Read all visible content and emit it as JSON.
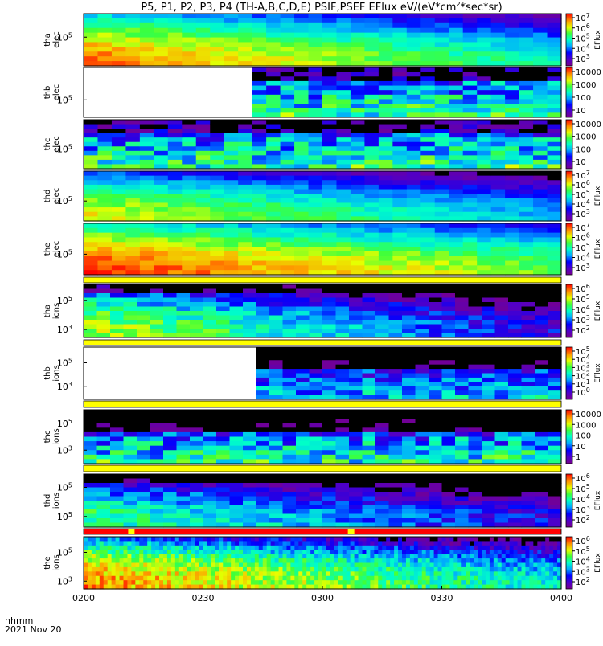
{
  "title": "P5, P1, P2, P3, P4 (TH-A,B,C,D,E) PSIF,PSEF EFlux eV/(eV*cm^2*sec*sr)",
  "time_axis": {
    "ticks": [
      "0200",
      "0230",
      "0300",
      "0330",
      "0400"
    ],
    "range_hours": [
      2.0,
      4.0
    ],
    "label_line1": "hhmm",
    "label_line2": "2021 Nov 20"
  },
  "colorscale": "rainbow",
  "chart_data": [
    {
      "type": "heatmap",
      "probe": "tha",
      "species": "elec",
      "ylabel": [
        "tha",
        "elec"
      ],
      "y_ticks": [
        {
          "base": "10",
          "exp": "5",
          "pos": 0.45
        }
      ],
      "colorbar": {
        "label": "EFlux",
        "log": true,
        "range": [
          100.0,
          10000000.0
        ],
        "ticks": [
          {
            "base": "10",
            "exp": "7"
          },
          {
            "base": "10",
            "exp": "6"
          },
          {
            "base": "10",
            "exp": "5"
          },
          {
            "base": "10",
            "exp": "4"
          },
          {
            "base": "10",
            "exp": "3"
          }
        ]
      },
      "data_start_hours": 2.0,
      "mean_log_flux": [
        6.5,
        4.5
      ]
    },
    {
      "type": "heatmap",
      "probe": "thb",
      "species": "elec",
      "ylabel": [
        "thb",
        "elec"
      ],
      "y_ticks": [
        {
          "base": "10",
          "exp": "5",
          "pos": 0.65
        }
      ],
      "colorbar": {
        "label": "",
        "log": true,
        "range": [
          1,
          10000.0
        ],
        "ticks": [
          {
            "text": "10000"
          },
          {
            "text": "1000"
          },
          {
            "text": "100"
          },
          {
            "text": "10"
          }
        ]
      },
      "data_start_hours": 2.75,
      "mean_log_flux": [
        1.0,
        1.0
      ]
    },
    {
      "type": "heatmap",
      "probe": "thc",
      "species": "elec",
      "ylabel": [
        "thc",
        "elec"
      ],
      "y_ticks": [
        {
          "base": "10",
          "exp": "5",
          "pos": 0.6
        }
      ],
      "colorbar": {
        "label": "",
        "log": true,
        "range": [
          1,
          10000.0
        ],
        "ticks": [
          {
            "text": "10000"
          },
          {
            "text": "1000"
          },
          {
            "text": "100"
          },
          {
            "text": "10"
          }
        ]
      },
      "data_start_hours": 2.0,
      "mean_log_flux": [
        1.5,
        1.0
      ]
    },
    {
      "type": "heatmap",
      "probe": "thd",
      "species": "elec",
      "ylabel": [
        "thd",
        "elec"
      ],
      "y_ticks": [
        {
          "base": "10",
          "exp": "5",
          "pos": 0.6
        }
      ],
      "colorbar": {
        "label": "EFlux",
        "log": true,
        "range": [
          100.0,
          10000000.0
        ],
        "ticks": [
          {
            "base": "10",
            "exp": "7"
          },
          {
            "base": "10",
            "exp": "6"
          },
          {
            "base": "10",
            "exp": "5"
          },
          {
            "base": "10",
            "exp": "4"
          },
          {
            "base": "10",
            "exp": "3"
          }
        ]
      },
      "data_start_hours": 2.0,
      "mean_log_flux": [
        5.8,
        4.0
      ]
    },
    {
      "type": "heatmap",
      "probe": "the",
      "species": "elec",
      "ylabel": [
        "the",
        "elec"
      ],
      "y_ticks": [
        {
          "base": "10",
          "exp": "5",
          "pos": 0.6
        }
      ],
      "colorbar": {
        "label": "EFlux",
        "log": true,
        "range": [
          100.0,
          10000000.0
        ],
        "ticks": [
          {
            "base": "10",
            "exp": "7"
          },
          {
            "base": "10",
            "exp": "6"
          },
          {
            "base": "10",
            "exp": "5"
          },
          {
            "base": "10",
            "exp": "4"
          },
          {
            "base": "10",
            "exp": "3"
          }
        ]
      },
      "data_start_hours": 2.0,
      "mean_log_flux": [
        6.8,
        5.2
      ]
    },
    {
      "type": "heatmap",
      "probe": "tha",
      "species": "ions",
      "ylabel": [
        "tha",
        "ions"
      ],
      "y_ticks": [
        {
          "base": "10",
          "exp": "5",
          "pos": 0.3
        },
        {
          "base": "10",
          "exp": "3",
          "pos": 0.85
        }
      ],
      "colorbar": {
        "label": "EFlux",
        "log": true,
        "range": [
          100.0,
          1000000.0
        ],
        "ticks": [
          {
            "base": "10",
            "exp": "6"
          },
          {
            "base": "10",
            "exp": "5"
          },
          {
            "base": "10",
            "exp": "4"
          },
          {
            "base": "10",
            "exp": "3"
          },
          {
            "base": "10",
            "exp": "2"
          }
        ]
      },
      "data_start_hours": 2.0,
      "mean_log_flux": [
        4.8,
        2.8
      ]
    },
    {
      "type": "heatmap",
      "probe": "thb",
      "species": "ions",
      "ylabel": [
        "thb",
        "ions"
      ],
      "y_ticks": [
        {
          "base": "10",
          "exp": "5",
          "pos": 0.3
        },
        {
          "base": "10",
          "exp": "3",
          "pos": 0.75
        }
      ],
      "colorbar": {
        "label": "EFlux",
        "log": true,
        "range": [
          1,
          100000.0
        ],
        "ticks": [
          {
            "base": "10",
            "exp": "5"
          },
          {
            "base": "10",
            "exp": "4"
          },
          {
            "base": "10",
            "exp": "3"
          },
          {
            "base": "10",
            "exp": "2"
          },
          {
            "base": "10",
            "exp": "1"
          },
          {
            "base": "10",
            "exp": "0"
          }
        ]
      },
      "data_start_hours": 2.75,
      "mean_log_flux": [
        1.5,
        1.5
      ]
    },
    {
      "type": "heatmap",
      "probe": "thc",
      "species": "ions",
      "ylabel": [
        "thc",
        "ions"
      ],
      "y_ticks": [
        {
          "base": "10",
          "exp": "5",
          "pos": 0.25
        },
        {
          "base": "10",
          "exp": "3",
          "pos": 0.75
        }
      ],
      "colorbar": {
        "label": "",
        "log": true,
        "range": [
          1,
          10000.0
        ],
        "ticks": [
          {
            "text": "10000"
          },
          {
            "text": "1000"
          },
          {
            "text": "100"
          },
          {
            "text": "10"
          },
          {
            "text": "1"
          }
        ]
      },
      "data_start_hours": 2.0,
      "mean_log_flux": [
        1.5,
        1.0
      ]
    },
    {
      "type": "heatmap",
      "probe": "thd",
      "species": "ions",
      "ylabel": [
        "thd",
        "ions"
      ],
      "y_ticks": [
        {
          "base": "10",
          "exp": "5",
          "pos": 0.25
        },
        {
          "base": "10",
          "exp": "5",
          "pos": 0.8
        }
      ],
      "colorbar": {
        "label": "EFlux",
        "log": true,
        "range": [
          100.0,
          1000000.0
        ],
        "ticks": [
          {
            "base": "10",
            "exp": "6"
          },
          {
            "base": "10",
            "exp": "5"
          },
          {
            "base": "10",
            "exp": "4"
          },
          {
            "base": "10",
            "exp": "3"
          },
          {
            "base": "10",
            "exp": "2"
          }
        ]
      },
      "data_start_hours": 2.0,
      "mean_log_flux": [
        4.3,
        2.8
      ]
    },
    {
      "type": "heatmap",
      "probe": "the",
      "species": "ions",
      "ylabel": [
        "the",
        "ions"
      ],
      "y_ticks": [
        {
          "base": "10",
          "exp": "5",
          "pos": 0.3
        },
        {
          "base": "10",
          "exp": "3",
          "pos": 0.85
        }
      ],
      "colorbar": {
        "label": "EFlux",
        "log": true,
        "range": [
          100.0,
          1000000.0
        ],
        "ticks": [
          {
            "base": "10",
            "exp": "6"
          },
          {
            "base": "10",
            "exp": "5"
          },
          {
            "base": "10",
            "exp": "4"
          },
          {
            "base": "10",
            "exp": "3"
          },
          {
            "base": "10",
            "exp": "2"
          }
        ]
      },
      "data_start_hours": 2.0,
      "mean_log_flux": [
        5.5,
        3.8
      ]
    }
  ],
  "mode_bars": [
    {
      "after_panel": 4,
      "color": "#ffff00"
    },
    {
      "after_panel": 5,
      "color": "#ffff00"
    },
    {
      "after_panel": 6,
      "color": "#ffff00"
    },
    {
      "after_panel": 7,
      "color": "#ffff00"
    },
    {
      "after_panel": 8,
      "color": "#ff0000",
      "marks": [
        {
          "t": 2.2,
          "color": "#ffff00"
        },
        {
          "t": 3.12,
          "color": "#ffff00"
        }
      ]
    }
  ]
}
